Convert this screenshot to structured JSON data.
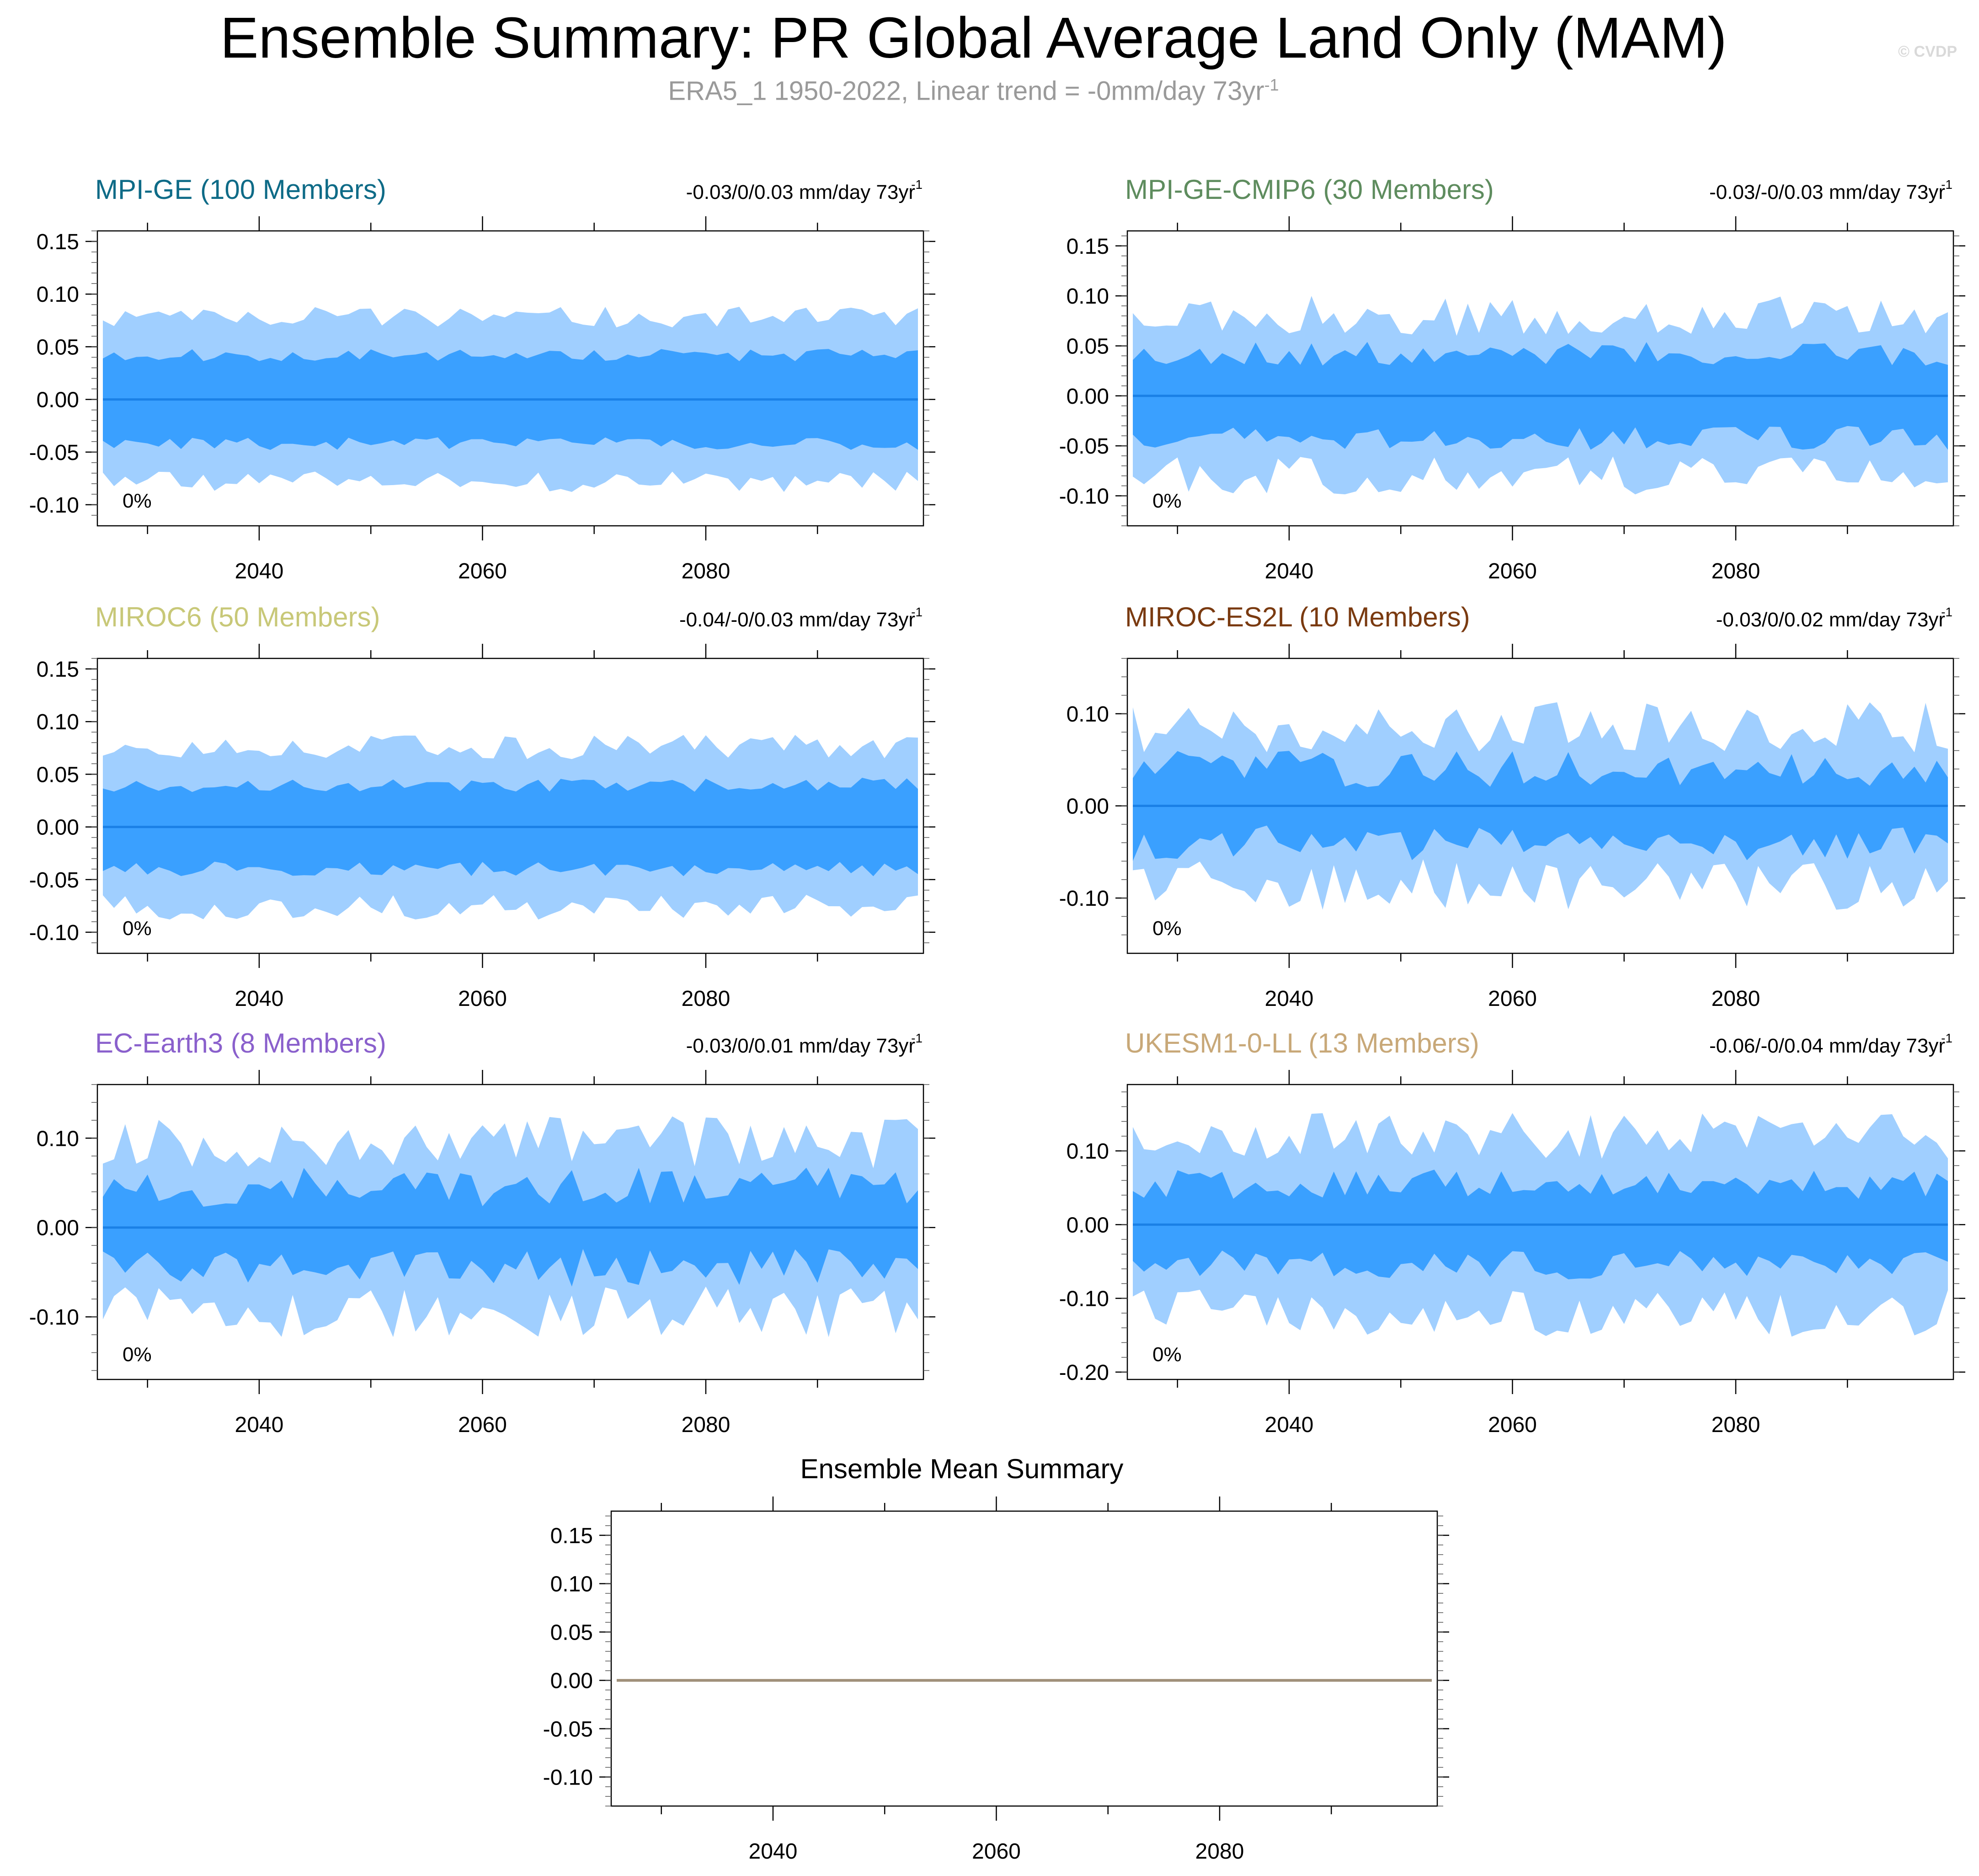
{
  "title": "Ensemble Summary: PR Global Average Land Only (MAM)",
  "subtitle": "ERA5_1 1950-2022, Linear trend = -0mm/day 73yr",
  "subtitle_sup": "-1",
  "copyright": "© CVDP",
  "colors": {
    "outer_band": "#a0cfff",
    "inner_band": "#3aa0ff",
    "median_line": "#1a80e6",
    "mean_line": "#a0907a"
  },
  "chart_data": [
    {
      "type": "area",
      "title": "MPI-GE (100 Members)",
      "title_color": "#0e6b87",
      "trend": "-0.03/0/0.03 mm/day 73yr",
      "trend_sup": "-1",
      "percent_label": "0%",
      "xlim": [
        2026,
        2099
      ],
      "ylim": [
        -0.12,
        0.16
      ],
      "yticks": [
        -0.1,
        -0.05,
        0.0,
        0.05,
        0.1,
        0.15
      ],
      "ytick_labels": [
        "-0.10",
        "-0.05",
        "0.00",
        "0.05",
        "0.10",
        "0.15"
      ],
      "xticks": [
        2040,
        2060,
        2080
      ],
      "xtick_labels": [
        "2040",
        "2060",
        "2080"
      ],
      "outer_amp": 0.078,
      "outer_var": 0.01,
      "inner_amp": 0.042,
      "inner_var": 0.006,
      "seed": 11
    },
    {
      "type": "area",
      "title": "MPI-GE-CMIP6 (30 Members)",
      "title_color": "#5e8c5e",
      "trend": "-0.03/-0/0.03 mm/day 73yr",
      "trend_sup": "-1",
      "percent_label": "0%",
      "xlim": [
        2026,
        2099
      ],
      "ylim": [
        -0.13,
        0.165
      ],
      "yticks": [
        -0.1,
        -0.05,
        0.0,
        0.05,
        0.1,
        0.15
      ],
      "ytick_labels": [
        "-0.10",
        "-0.05",
        "0.00",
        "0.05",
        "0.10",
        "0.15"
      ],
      "xticks": [
        2040,
        2060,
        2080
      ],
      "xtick_labels": [
        "2040",
        "2060",
        "2080"
      ],
      "outer_amp": 0.08,
      "outer_var": 0.02,
      "inner_amp": 0.042,
      "inner_var": 0.012,
      "seed": 23
    },
    {
      "type": "area",
      "title": "MIROC6 (50 Members)",
      "title_color": "#c8c878",
      "trend": "-0.04/-0/0.03 mm/day 73yr",
      "trend_sup": "-1",
      "percent_label": "0%",
      "xlim": [
        2026,
        2099
      ],
      "ylim": [
        -0.12,
        0.16
      ],
      "yticks": [
        -0.1,
        -0.05,
        0.0,
        0.05,
        0.1,
        0.15
      ],
      "ytick_labels": [
        "-0.10",
        "-0.05",
        "0.00",
        "0.05",
        "0.10",
        "0.15"
      ],
      "xticks": [
        2040,
        2060,
        2080
      ],
      "xtick_labels": [
        "2040",
        "2060",
        "2080"
      ],
      "outer_amp": 0.076,
      "outer_var": 0.012,
      "inner_amp": 0.04,
      "inner_var": 0.007,
      "seed": 37
    },
    {
      "type": "area",
      "title": "MIROC-ES2L (10 Members)",
      "title_color": "#7a3a10",
      "trend": "-0.03/0/0.02 mm/day 73yr",
      "trend_sup": "-1",
      "percent_label": "0%",
      "xlim": [
        2026,
        2099
      ],
      "ylim": [
        -0.16,
        0.16
      ],
      "yticks": [
        -0.1,
        0.0,
        0.1
      ],
      "ytick_labels": [
        "-0.10",
        "0.00",
        "0.10"
      ],
      "xticks": [
        2040,
        2060,
        2080
      ],
      "xtick_labels": [
        "2040",
        "2060",
        "2080"
      ],
      "outer_amp": 0.085,
      "outer_var": 0.028,
      "inner_amp": 0.04,
      "inner_var": 0.02,
      "seed": 41
    },
    {
      "type": "area",
      "title": "EC-Earth3 (8 Members)",
      "title_color": "#8a60cc",
      "trend": "-0.03/0/0.01 mm/day 73yr",
      "trend_sup": "-1",
      "percent_label": "0%",
      "xlim": [
        2026,
        2099
      ],
      "ylim": [
        -0.17,
        0.16
      ],
      "yticks": [
        -0.1,
        0.0,
        0.1
      ],
      "ytick_labels": [
        "-0.10",
        "0.00",
        "0.10"
      ],
      "xticks": [
        2040,
        2060,
        2080
      ],
      "xtick_labels": [
        "2040",
        "2060",
        "2080"
      ],
      "outer_amp": 0.095,
      "outer_var": 0.03,
      "inner_amp": 0.045,
      "inner_var": 0.022,
      "seed": 53
    },
    {
      "type": "area",
      "title": "UKESM1-0-LL (13 Members)",
      "title_color": "#c8a878",
      "trend": "-0.06/-0/0.04 mm/day 73yr",
      "trend_sup": "-1",
      "percent_label": "0%",
      "xlim": [
        2026,
        2099
      ],
      "ylim": [
        -0.21,
        0.19
      ],
      "yticks": [
        -0.2,
        -0.1,
        0.0,
        0.1
      ],
      "ytick_labels": [
        "-0.20",
        "-0.10",
        "0.00",
        "0.10"
      ],
      "xticks": [
        2040,
        2060,
        2080
      ],
      "xtick_labels": [
        "2040",
        "2060",
        "2080"
      ],
      "outer_amp": 0.12,
      "outer_var": 0.032,
      "inner_amp": 0.055,
      "inner_var": 0.02,
      "seed": 67
    },
    {
      "type": "line",
      "title": "Ensemble Mean Summary",
      "xlim": [
        2026,
        2099
      ],
      "ylim": [
        -0.13,
        0.175
      ],
      "yticks": [
        -0.1,
        -0.05,
        0.0,
        0.05,
        0.1,
        0.15
      ],
      "ytick_labels": [
        "-0.10",
        "-0.05",
        "0.00",
        "0.05",
        "0.10",
        "0.15"
      ],
      "xticks": [
        2040,
        2060,
        2080
      ],
      "xtick_labels": [
        "2040",
        "2060",
        "2080"
      ],
      "series": [
        {
          "x": [
            2026,
            2099
          ],
          "values": [
            0,
            0
          ]
        }
      ]
    }
  ]
}
